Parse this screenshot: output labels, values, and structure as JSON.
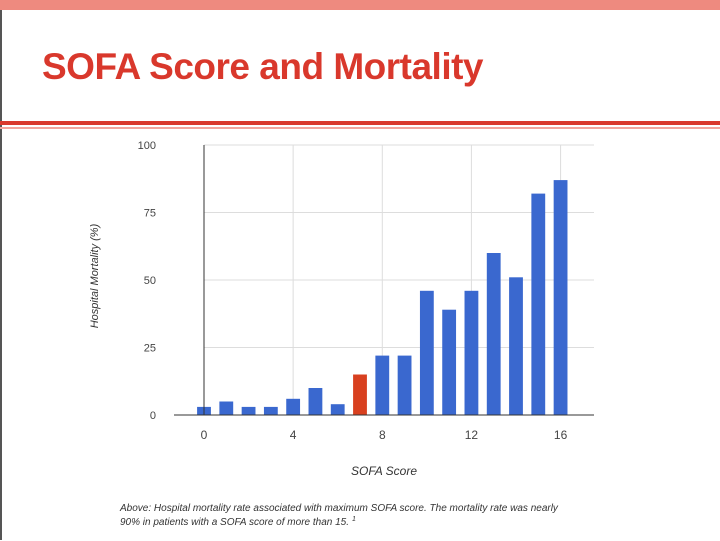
{
  "slide": {
    "title": "SOFA Score and Mortality",
    "colors": {
      "title": "#d9382c",
      "band": "#ee8a7f",
      "bar": "#3a68cf",
      "highlight": "#d8401f"
    }
  },
  "chart_data": {
    "type": "bar",
    "title": "",
    "xlabel": "SOFA Score",
    "ylabel": "Hospital Mortality (%)",
    "x": [
      0,
      1,
      2,
      3,
      4,
      5,
      6,
      7,
      8,
      9,
      10,
      11,
      12,
      13,
      14,
      15,
      16
    ],
    "values": [
      3,
      5,
      3,
      3,
      6,
      10,
      4,
      15,
      22,
      22,
      46,
      39,
      46,
      60,
      51,
      82,
      87
    ],
    "highlight_index": 7,
    "ylim": [
      0,
      100
    ],
    "xlim": [
      0,
      17.5
    ],
    "yticks": [
      0,
      25,
      50,
      75,
      100
    ],
    "xticks": [
      0,
      4,
      8,
      12,
      16
    ],
    "grid": true,
    "caption_line1": "Above: Hospital mortality rate associated with maximum SOFA score. The mortality rate was nearly",
    "caption_line2": "90% in patients with a SOFA score of more than 15.",
    "caption_ref": "1"
  }
}
